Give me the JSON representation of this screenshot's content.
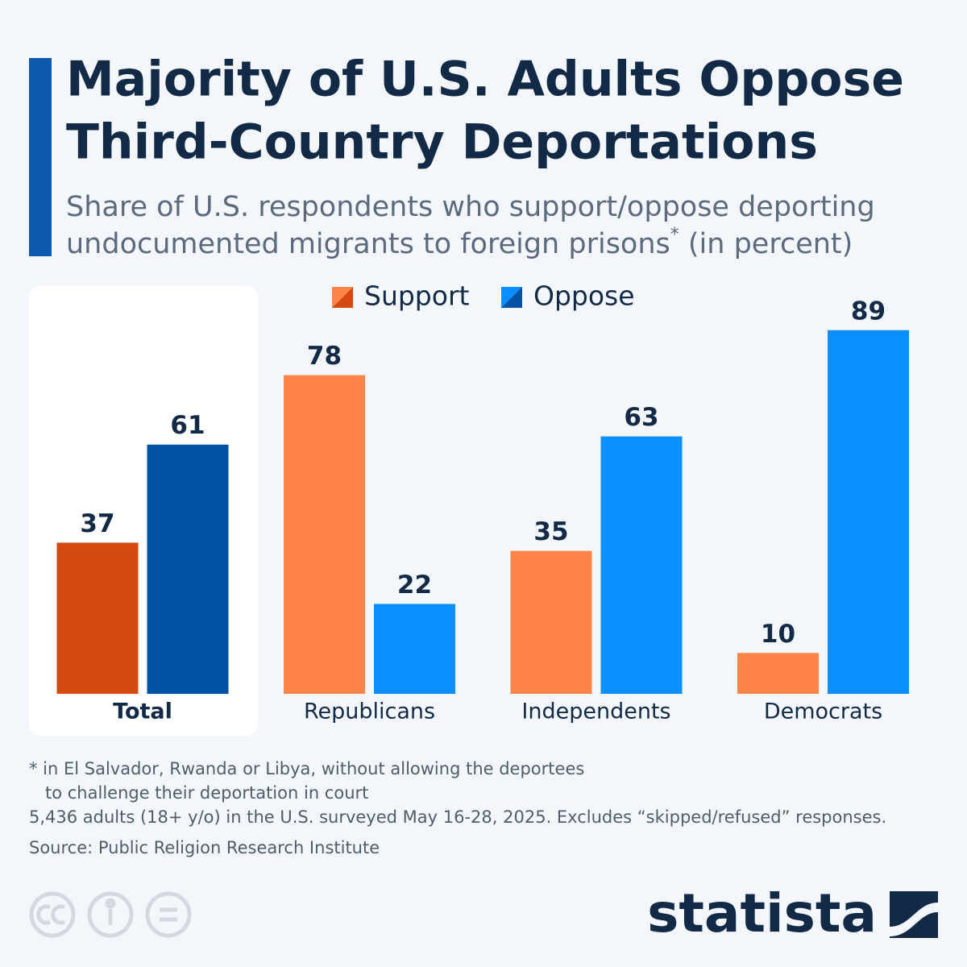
{
  "chart_data": {
    "type": "bar",
    "title": [
      "Majority of U.S. Adults Oppose",
      "Third-Country Deportations"
    ],
    "subtitle": [
      "Share of U.S. respondents who support/oppose deporting",
      "undocumented migrants to foreign prisons",
      "*",
      " (in percent)"
    ],
    "categories": [
      "Total",
      "Republicans",
      "Independents",
      "Democrats"
    ],
    "series": [
      {
        "name": "Support",
        "colors": [
          "#d4490f",
          "#ff8449",
          "#ff8449",
          "#ff8449"
        ],
        "values": [
          37,
          78,
          35,
          10
        ]
      },
      {
        "name": "Oppose",
        "colors": [
          "#0052a5",
          "#0b8fff",
          "#0b8fff",
          "#0b8fff"
        ],
        "values": [
          61,
          22,
          63,
          89
        ]
      }
    ],
    "notes": [
      "* in El Salvador, Rwanda or Libya, without allowing the deportees",
      "to challenge their deportation in court",
      "5,436 adults (18+ y/o) in the U.S. surveyed May 16-28, 2025. Excludes “skipped/refused” responses.",
      "Source: Public Religion Research Institute"
    ],
    "brand": "statista"
  }
}
